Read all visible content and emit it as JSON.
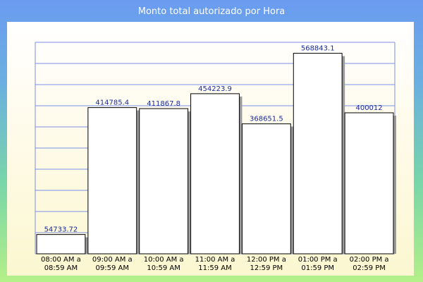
{
  "chart_data": {
    "type": "bar",
    "title": "Monto total autorizado por Hora",
    "categories": [
      [
        "08:00 AM a",
        "08:59 AM"
      ],
      [
        "09:00 AM a",
        "09:59 AM"
      ],
      [
        "10:00 AM a",
        "10:59 AM"
      ],
      [
        "11:00 AM a",
        "11:59 AM"
      ],
      [
        "12:00 PM a",
        "12:59 PM"
      ],
      [
        "01:00 PM a",
        "01:59 PM"
      ],
      [
        "02:00 PM a",
        "02:59 PM"
      ]
    ],
    "values": [
      54733.72,
      414785.4,
      411867.8,
      454223.9,
      368651.5,
      568843.1,
      400012
    ],
    "value_labels": [
      "54733.72",
      "414785.4",
      "411867.8",
      "454223.9",
      "368651.5",
      "568843.1",
      "400012"
    ],
    "ylim": [
      0,
      600000
    ],
    "grid": true,
    "colors": {
      "bar_fill": "#ffffff",
      "bar_stroke": "#000000",
      "bar_shadow": "#9a9a9a",
      "grid": "#7b8fe6",
      "value_label": "#1a2a9a"
    }
  }
}
